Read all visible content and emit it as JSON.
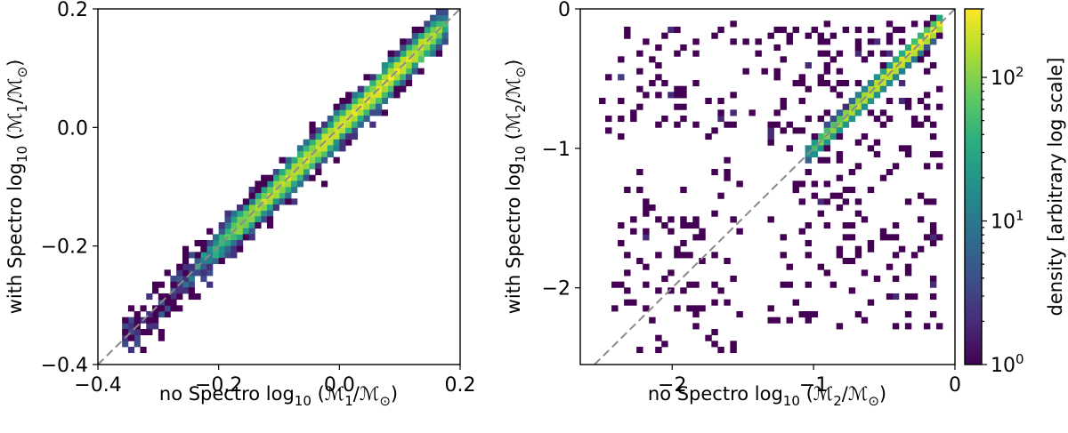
{
  "chart_data": [
    {
      "type": "heatmap",
      "panel": "left",
      "xlabel": {
        "prefix": "no Spectro log",
        "sub": "10",
        "mid1": "(ℳ",
        "num_sub": "1",
        "mid2": "/ℳ",
        "den_sub": "⊙",
        "suffix": ")"
      },
      "ylabel": {
        "prefix": "with Spectro log",
        "sub": "10",
        "mid1": "(ℳ",
        "num_sub": "1",
        "mid2": "/ℳ",
        "den_sub": "⊙",
        "suffix": ")"
      },
      "xlim": [
        -0.4,
        0.2
      ],
      "ylim": [
        -0.4,
        0.2
      ],
      "xticks": [
        -0.4,
        -0.2,
        0.0,
        0.2
      ],
      "xtick_labels": [
        "−0.4",
        "−0.2",
        "0.0",
        "0.2"
      ],
      "yticks": [
        -0.4,
        -0.2,
        0.0,
        0.2
      ],
      "ytick_labels": [
        "−0.4",
        "−0.2",
        "0.0",
        "0.2"
      ],
      "reference_line": "y = x (dashed grey)",
      "bins": 60,
      "density_model": {
        "ridge_x_start": -0.36,
        "ridge_x_end": 0.18,
        "ridge_width": 0.018,
        "peak_log_density": 2.4,
        "scatter_x_range": [
          -0.36,
          0.18
        ]
      }
    },
    {
      "type": "heatmap",
      "panel": "right",
      "xlabel": {
        "prefix": "no Spectro log",
        "sub": "10",
        "mid1": "(ℳ",
        "num_sub": "2",
        "mid2": "/ℳ",
        "den_sub": "⊙",
        "suffix": ")"
      },
      "ylabel": {
        "prefix": "with Spectro log",
        "sub": "10",
        "mid1": "(ℳ",
        "num_sub": "2",
        "mid2": "/ℳ",
        "den_sub": "⊙",
        "suffix": ")"
      },
      "xlim": [
        -2.65,
        0.0
      ],
      "ylim": [
        -2.55,
        0.0
      ],
      "xticks": [
        -2,
        -1,
        0
      ],
      "xtick_labels": [
        "−2",
        "−1",
        "0"
      ],
      "yticks": [
        -2,
        -1,
        0
      ],
      "ytick_labels": [
        "−2",
        "−1",
        "0"
      ],
      "reference_line": "y = x (dashed grey)",
      "bins": 60,
      "density_model": {
        "ridge_x_start": -1.05,
        "ridge_x_end": -0.1,
        "ridge_width": 0.035,
        "peak_log_density": 2.5,
        "scattered_points": 420
      }
    }
  ],
  "colorbar": {
    "label": "density [arbitrary log scale]",
    "scale": "log",
    "colormap": "viridis",
    "range": [
      1,
      300
    ],
    "ticks": [
      1,
      10,
      100
    ],
    "tick_base": "10",
    "tick_exponents": [
      "0",
      "1",
      "2"
    ]
  }
}
